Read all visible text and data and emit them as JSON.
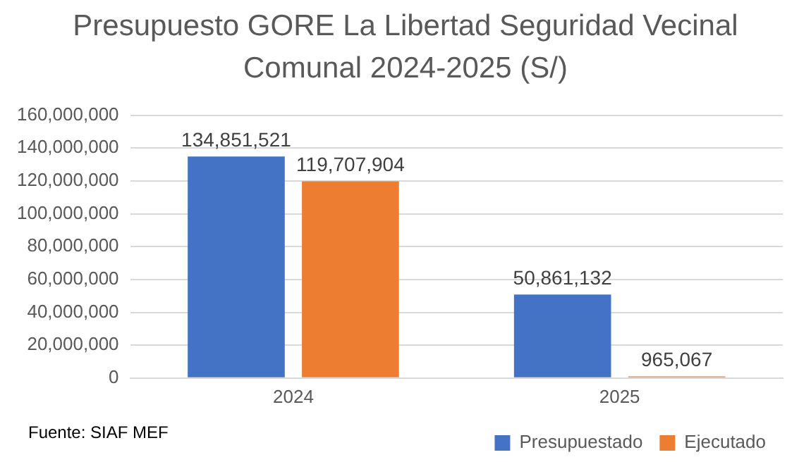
{
  "chart_data": {
    "type": "bar",
    "title": "Presupuesto GORE La Libertad Seguridad Vecinal Comunal 2024-2025 (S/)",
    "categories": [
      "2024",
      "2025"
    ],
    "series": [
      {
        "name": "Presupuestado",
        "color": "#4472c4",
        "values": [
          134851521,
          50861132
        ],
        "value_labels": [
          "134,851,521",
          "50,861,132"
        ]
      },
      {
        "name": "Ejecutado",
        "color": "#ed7d31",
        "values": [
          119707904,
          965067
        ],
        "value_labels": [
          "119,707,904",
          "965,067"
        ]
      }
    ],
    "ylim": [
      0,
      160000000
    ],
    "yticks": [
      {
        "value": 0,
        "label": "0"
      },
      {
        "value": 20000000,
        "label": "20,000,000"
      },
      {
        "value": 40000000,
        "label": "40,000,000"
      },
      {
        "value": 60000000,
        "label": "60,000,000"
      },
      {
        "value": 80000000,
        "label": "80,000,000"
      },
      {
        "value": 100000000,
        "label": "100,000,000"
      },
      {
        "value": 120000000,
        "label": "120,000,000"
      },
      {
        "value": 140000000,
        "label": "140,000,000"
      },
      {
        "value": 160000000,
        "label": "160,000,000"
      }
    ],
    "grid": "y",
    "legend": "bottom right",
    "annotations": [
      "Fuente: SIAF MEF"
    ]
  }
}
